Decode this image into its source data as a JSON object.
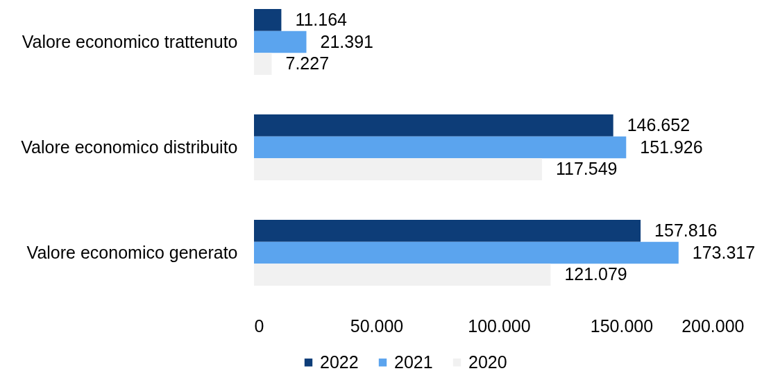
{
  "chart_data": {
    "type": "bar",
    "orientation": "horizontal",
    "categories": [
      "Valore economico trattenuto",
      "Valore economico distribuito",
      "Valore economico generato"
    ],
    "series": [
      {
        "name": "2022",
        "color": "#0d3d78",
        "values": [
          11164,
          146652,
          157816
        ],
        "value_labels": [
          "11.164",
          "146.652",
          "157.816"
        ]
      },
      {
        "name": "2021",
        "color": "#5ba4ee",
        "values": [
          21391,
          151926,
          173317
        ],
        "value_labels": [
          "21.391",
          "151.926",
          "173.317"
        ]
      },
      {
        "name": "2020",
        "color": "#f1f1f1",
        "values": [
          7227,
          117549,
          121079
        ],
        "value_labels": [
          "7.227",
          "117.549",
          "121.079"
        ]
      }
    ],
    "xlim": [
      0,
      200000
    ],
    "xticks": [
      0,
      {
        "value": 50000,
        "label": "50.000"
      },
      {
        "value": 100000,
        "label": "100.000"
      },
      {
        "value": 150000,
        "label": "150.000"
      },
      {
        "value": 200000,
        "label": "200.000"
      }
    ],
    "grid": false,
    "legend": "bottom"
  }
}
